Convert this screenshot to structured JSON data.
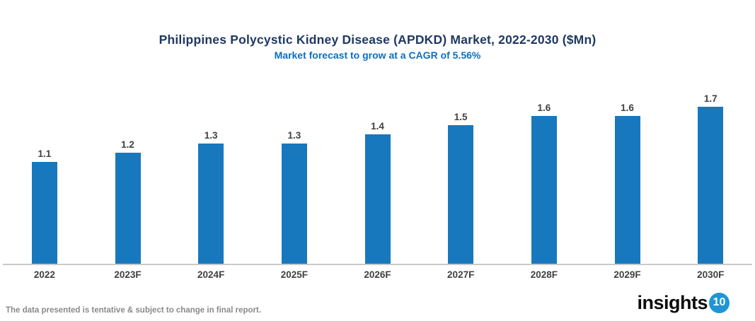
{
  "title": "Philippines Polycystic Kidney Disease (APDKD) Market, 2022-2030 ($Mn)",
  "subtitle": "Market forecast to grow at a CAGR of 5.56%",
  "footer": {
    "disclaimer": "The data presented is tentative & subject to change in final report."
  },
  "logo": {
    "text": "insights",
    "badge": "10"
  },
  "colors": {
    "background": "#ffffff",
    "bar": "#1878BE",
    "title": "#1F3864",
    "subtitle": "#0B6FC1",
    "axis_line": "#C9C9C9",
    "data_label": "#404040",
    "footer_text": "#8A8A8A",
    "logo_badge": "#1E96D5"
  },
  "chart_data": {
    "type": "bar",
    "title": "Philippines Polycystic Kidney Disease (APDKD) Market, 2022-2030 ($Mn)",
    "subtitle": "Market forecast to grow at a CAGR of 5.56%",
    "categories": [
      "2022",
      "2023F",
      "2024F",
      "2025F",
      "2026F",
      "2027F",
      "2028F",
      "2029F",
      "2030F"
    ],
    "values": [
      1.1,
      1.2,
      1.3,
      1.3,
      1.4,
      1.5,
      1.6,
      1.6,
      1.7
    ],
    "xlabel": "",
    "ylabel": "",
    "ylim": [
      0,
      1.95
    ],
    "grid": false,
    "legend": false,
    "data_labels": true,
    "y_axis_visible": false,
    "x_axis_line": true
  }
}
